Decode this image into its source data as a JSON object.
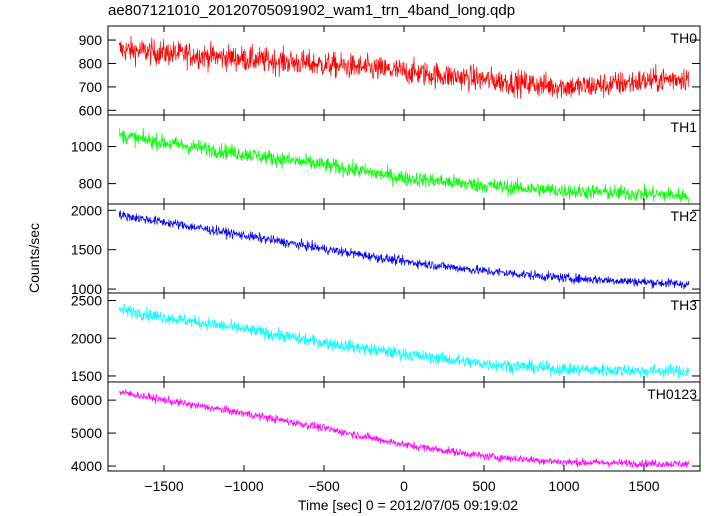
{
  "title": "ae807121010_20120705091902_wam1_trn_4band_long.qdp",
  "chart_data": {
    "type": "line",
    "xlabel": "Time [sec] 0 = 2012/07/05 09:19:02",
    "ylabel": "Counts/sec",
    "xlim": [
      -1850,
      1850
    ],
    "x_ticks": [
      -1500,
      -1000,
      -500,
      0,
      500,
      1000,
      1500
    ],
    "x_tick_labels": [
      "−1500",
      "−1000",
      "−500",
      "0",
      "500",
      "1000",
      "1500"
    ],
    "panels": [
      {
        "name": "TH0",
        "color": "#ff0000",
        "ylim": [
          580,
          960
        ],
        "y_ticks": [
          600,
          700,
          800,
          900
        ],
        "x": [
          -1780,
          -1500,
          -1200,
          -900,
          -600,
          -300,
          0,
          300,
          600,
          900,
          1100,
          1300,
          1500,
          1780
        ],
        "y": [
          860,
          845,
          830,
          815,
          800,
          785,
          765,
          745,
          725,
          705,
          700,
          710,
          725,
          740
        ],
        "noise": 45
      },
      {
        "name": "TH1",
        "color": "#00ff00",
        "ylim": [
          690,
          1170
        ],
        "y_ticks": [
          800,
          1000
        ],
        "x": [
          -1780,
          -1500,
          -1000,
          -500,
          0,
          500,
          1000,
          1500,
          1780
        ],
        "y": [
          1060,
          1020,
          960,
          900,
          830,
          790,
          760,
          745,
          735
        ],
        "noise": 35
      },
      {
        "name": "TH2",
        "color": "#0000ff",
        "ylim": [
          950,
          2080
        ],
        "y_ticks": [
          1000,
          1500,
          2000
        ],
        "x": [
          -1780,
          -1500,
          -1000,
          -500,
          0,
          500,
          1000,
          1500,
          1780
        ],
        "y": [
          1940,
          1850,
          1680,
          1510,
          1350,
          1230,
          1140,
          1090,
          1060
        ],
        "noise": 50
      },
      {
        "name": "TH3",
        "color": "#00ffff",
        "ylim": [
          1420,
          2600
        ],
        "y_ticks": [
          1500,
          2000,
          2500
        ],
        "x": [
          -1780,
          -1500,
          -1000,
          -500,
          0,
          500,
          1000,
          1500,
          1780
        ],
        "y": [
          2380,
          2280,
          2120,
          1940,
          1790,
          1660,
          1590,
          1570,
          1560
        ],
        "noise": 70
      },
      {
        "name": "TH0123",
        "color": "#ff00ff",
        "ylim": [
          3850,
          6550
        ],
        "y_ticks": [
          4000,
          5000,
          6000
        ],
        "x": [
          -1780,
          -1500,
          -1000,
          -500,
          0,
          500,
          1000,
          1500,
          1780
        ],
        "y": [
          6250,
          6000,
          5600,
          5150,
          4650,
          4300,
          4120,
          4080,
          4060
        ],
        "noise": 100
      }
    ]
  }
}
